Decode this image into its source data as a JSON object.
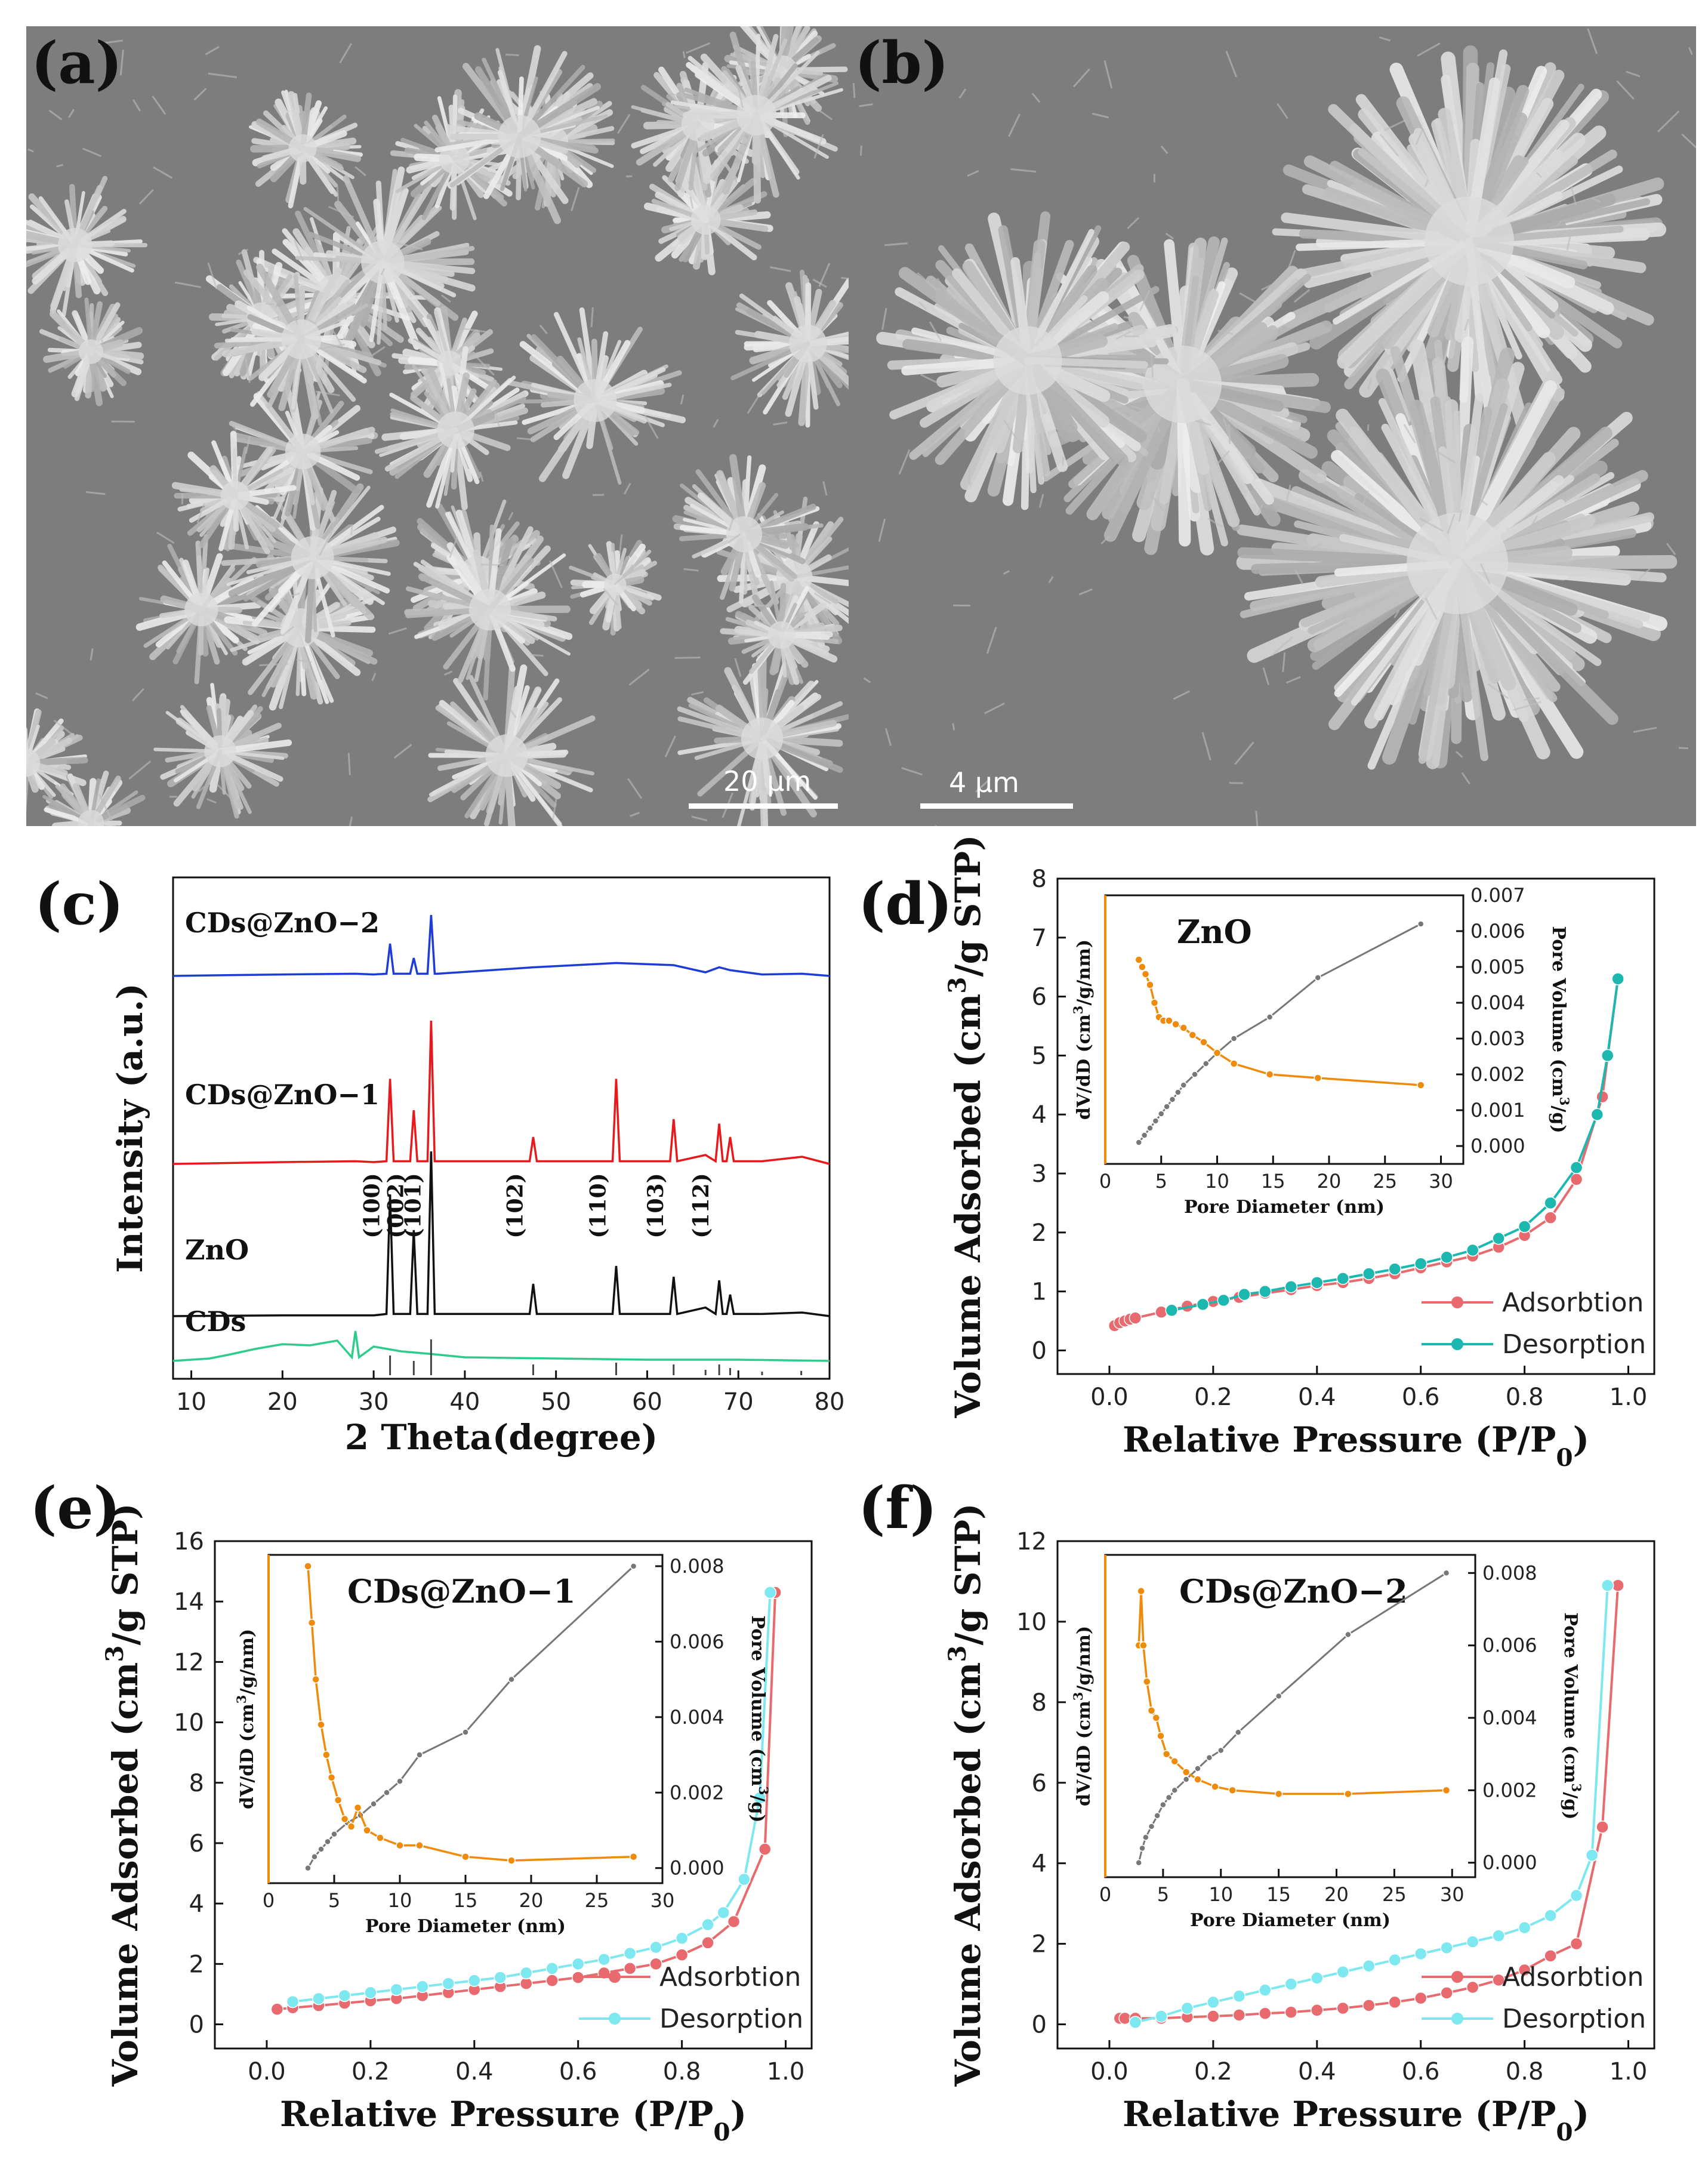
{
  "panels": {
    "a": {
      "label": "(a)",
      "scale_bar": "20 μm"
    },
    "b": {
      "label": "(b)",
      "scale_bar": "4 μm"
    },
    "c": {
      "label": "(c)"
    },
    "d": {
      "label": "(d)"
    },
    "e": {
      "label": "(e)"
    },
    "f": {
      "label": "(f)"
    }
  },
  "colors": {
    "xrd_cds": "#2ecc8a",
    "xrd_zno": "#111111",
    "xrd_cdszno1": "#e8191c",
    "xrd_cdszno2": "#1e3cd8",
    "adsorption": "#e86a6e",
    "desorption_d": "#1cb8b0",
    "desorption_ef": "#7ee8f0",
    "inset_dvdd": "#f08a0a",
    "inset_porevol": "#777777"
  },
  "chart_data": [
    {
      "id": "c",
      "type": "line",
      "xlabel": "2 Theta(degree)",
      "ylabel": "Intensity (a.u.)",
      "xlim": [
        8,
        80
      ],
      "xticks": [
        "10",
        "20",
        "30",
        "40",
        "50",
        "60",
        "70",
        "80"
      ],
      "series": [
        {
          "name": "CDs@ZnO−2",
          "x": [
            8,
            20,
            28,
            30,
            31.8,
            32.5,
            34.4,
            35,
            36.3,
            37,
            47.5,
            56.6,
            62.9,
            66.4,
            67.9,
            69.1,
            72.6,
            77,
            80
          ],
          "y": [
            0,
            0.02,
            0.03,
            0.02,
            0.45,
            0.03,
            0.25,
            0.03,
            0.85,
            0.03,
            0.12,
            0.18,
            0.15,
            0.05,
            0.12,
            0.08,
            0.02,
            0.03,
            0
          ]
        },
        {
          "name": "CDs@ZnO−1",
          "x": [
            8,
            20,
            28,
            30,
            31.8,
            32.5,
            34.4,
            35,
            36.3,
            37,
            47.5,
            56.6,
            62.9,
            66.4,
            67.9,
            69.1,
            72.6,
            77,
            80
          ],
          "y": [
            0,
            0.02,
            0.03,
            0.02,
            0.95,
            0.03,
            0.6,
            0.03,
            1.6,
            0.03,
            0.3,
            0.95,
            0.5,
            0.1,
            0.45,
            0.3,
            0.03,
            0.08,
            0
          ]
        },
        {
          "name": "ZnO",
          "x": [
            8,
            20,
            28,
            30,
            31.8,
            32.5,
            34.4,
            35,
            36.3,
            37,
            47.5,
            56.6,
            62.9,
            66.4,
            67.9,
            69.1,
            72.6,
            77,
            80
          ],
          "y": [
            0,
            0.01,
            0.01,
            0.01,
            1.7,
            0.03,
            1.2,
            0.03,
            2.3,
            0.03,
            0.45,
            0.7,
            0.55,
            0.12,
            0.5,
            0.3,
            0.03,
            0.05,
            0
          ]
        },
        {
          "name": "CDs",
          "x": [
            8,
            12,
            14,
            17,
            20,
            23,
            26,
            28,
            30,
            33,
            36,
            40,
            50,
            60,
            70,
            80
          ],
          "y": [
            0,
            0.02,
            0.05,
            0.1,
            0.14,
            0.13,
            0.17,
            0.25,
            0.12,
            0.08,
            0.06,
            0.03,
            0.02,
            0.01,
            0.01,
            0
          ]
        }
      ],
      "peak_labels": [
        {
          "label": "(100)",
          "x": 31.8
        },
        {
          "label": "(002)",
          "x": 34.4
        },
        {
          "label": "(101)",
          "x": 36.3
        },
        {
          "label": "(102)",
          "x": 47.5
        },
        {
          "label": "(110)",
          "x": 56.6
        },
        {
          "label": "(103)",
          "x": 62.9
        },
        {
          "label": "(112)",
          "x": 67.9
        }
      ],
      "reference_lines": {
        "x": [
          31.8,
          34.4,
          36.3,
          47.5,
          56.6,
          62.9,
          66.4,
          67.9,
          69.1,
          72.6,
          76.9
        ],
        "height": [
          0.55,
          0.4,
          1.0,
          0.3,
          0.35,
          0.3,
          0.15,
          0.3,
          0.2,
          0.1,
          0.12
        ]
      }
    },
    {
      "id": "d",
      "type": "line",
      "xlabel": "Relative Pressure (P/P",
      "xlabel_sub": "0",
      "xlabel_close": ")",
      "ylabel": "Volume Adsorbed (cm",
      "ylabel_sup": "3",
      "ylabel_rest": "/g STP)",
      "xlim": [
        -0.1,
        1.05
      ],
      "ylim": [
        -0.4,
        8
      ],
      "xticks": [
        "0.0",
        "0.2",
        "0.4",
        "0.6",
        "0.8",
        "1.0"
      ],
      "yticks": [
        "0",
        "1",
        "2",
        "3",
        "4",
        "5",
        "6",
        "7",
        "8"
      ],
      "legend": [
        "Adsorbtion",
        "Desorption"
      ],
      "series": [
        {
          "name": "Adsorbtion",
          "x": [
            0.01,
            0.02,
            0.03,
            0.04,
            0.05,
            0.1,
            0.15,
            0.2,
            0.25,
            0.3,
            0.35,
            0.4,
            0.45,
            0.5,
            0.55,
            0.6,
            0.65,
            0.7,
            0.75,
            0.8,
            0.85,
            0.9,
            0.95,
            0.98
          ],
          "y": [
            0.42,
            0.47,
            0.5,
            0.53,
            0.55,
            0.65,
            0.75,
            0.83,
            0.9,
            0.97,
            1.03,
            1.1,
            1.15,
            1.22,
            1.3,
            1.4,
            1.5,
            1.6,
            1.75,
            1.95,
            2.25,
            2.9,
            4.3,
            6.3
          ]
        },
        {
          "name": "Desorption",
          "x": [
            0.12,
            0.18,
            0.22,
            0.26,
            0.3,
            0.35,
            0.4,
            0.45,
            0.5,
            0.55,
            0.6,
            0.65,
            0.7,
            0.75,
            0.8,
            0.85,
            0.9,
            0.94,
            0.96,
            0.98
          ],
          "y": [
            0.68,
            0.78,
            0.85,
            0.95,
            1.0,
            1.08,
            1.15,
            1.22,
            1.3,
            1.38,
            1.47,
            1.58,
            1.7,
            1.9,
            2.1,
            2.5,
            3.1,
            4.0,
            5.0,
            6.3
          ]
        }
      ],
      "inset": {
        "title": "ZnO",
        "xlabel": "Pore Diameter (nm)",
        "ylabel_left": "dV/dD (cm",
        "ylabel_left_sup": "3",
        "ylabel_left_rest": "/g/nm)",
        "ylabel_right": "Pore Volume (cm",
        "ylabel_right_sup": "3",
        "ylabel_right_rest": "/g)",
        "xlim": [
          0,
          32
        ],
        "xticks": [
          "0",
          "5",
          "10",
          "15",
          "20",
          "25",
          "30"
        ],
        "yticks_right": [
          "0.000",
          "0.001",
          "0.002",
          "0.003",
          "0.004",
          "0.005",
          "0.006",
          "0.007"
        ],
        "right_lim": [
          -0.0005,
          0.007
        ],
        "dvdd": {
          "x": [
            3,
            3.3,
            3.6,
            4,
            4.4,
            4.8,
            5.2,
            5.7,
            6.3,
            7,
            7.8,
            8.8,
            10,
            11.5,
            14.7,
            19,
            28.2
          ],
          "y": [
            0.0052,
            0.005,
            0.0048,
            0.0045,
            0.004,
            0.0036,
            0.0035,
            0.0035,
            0.0034,
            0.0033,
            0.0031,
            0.0029,
            0.0026,
            0.0023,
            0.002,
            0.0019,
            0.0017
          ]
        },
        "porevol": {
          "x": [
            3,
            3.5,
            4,
            4.5,
            5,
            5.5,
            6,
            6.5,
            7,
            8,
            9,
            10,
            11.5,
            14.7,
            19,
            28.2
          ],
          "y": [
            0.0001,
            0.0003,
            0.0005,
            0.0007,
            0.0009,
            0.0011,
            0.0013,
            0.0015,
            0.0017,
            0.002,
            0.0023,
            0.0026,
            0.003,
            0.0036,
            0.0047,
            0.0062
          ]
        }
      }
    },
    {
      "id": "e",
      "type": "line",
      "xlabel": "Relative Pressure (P/P",
      "xlabel_sub": "0",
      "xlabel_close": ")",
      "ylabel": "Volume Adsorbed (cm",
      "ylabel_sup": "3",
      "ylabel_rest": "/g STP)",
      "xlim": [
        -0.1,
        1.05
      ],
      "ylim": [
        -0.8,
        16
      ],
      "xticks": [
        "0.0",
        "0.2",
        "0.4",
        "0.6",
        "0.8",
        "1.0"
      ],
      "yticks": [
        "0",
        "2",
        "4",
        "6",
        "8",
        "10",
        "12",
        "14",
        "16"
      ],
      "legend": [
        "Adsorbtion",
        "Desorption"
      ],
      "series": [
        {
          "name": "Adsorbtion",
          "x": [
            0.02,
            0.05,
            0.1,
            0.15,
            0.2,
            0.25,
            0.3,
            0.35,
            0.4,
            0.45,
            0.5,
            0.55,
            0.6,
            0.65,
            0.7,
            0.75,
            0.8,
            0.85,
            0.9,
            0.96,
            0.98
          ],
          "y": [
            0.5,
            0.55,
            0.62,
            0.7,
            0.78,
            0.85,
            0.95,
            1.05,
            1.15,
            1.25,
            1.35,
            1.45,
            1.55,
            1.7,
            1.85,
            2.0,
            2.3,
            2.7,
            3.4,
            5.8,
            14.3
          ]
        },
        {
          "name": "Desorption",
          "x": [
            0.05,
            0.1,
            0.15,
            0.2,
            0.25,
            0.3,
            0.35,
            0.4,
            0.45,
            0.5,
            0.55,
            0.6,
            0.65,
            0.7,
            0.75,
            0.8,
            0.85,
            0.88,
            0.92,
            0.95,
            0.97
          ],
          "y": [
            0.75,
            0.85,
            0.95,
            1.05,
            1.15,
            1.25,
            1.35,
            1.45,
            1.55,
            1.7,
            1.85,
            2.0,
            2.15,
            2.35,
            2.55,
            2.85,
            3.3,
            3.7,
            4.8,
            7.5,
            14.3
          ]
        }
      ],
      "inset": {
        "title": "CDs@ZnO−1",
        "xlabel": "Pore Diameter (nm)",
        "ylabel_left": "dV/dD (cm",
        "ylabel_left_sup": "3",
        "ylabel_left_rest": "/g/nm)",
        "ylabel_right": "Pore Volume (cm",
        "ylabel_right_sup": "3",
        "ylabel_right_rest": "/g)",
        "xlim": [
          0,
          30
        ],
        "xticks": [
          "0",
          "5",
          "10",
          "15",
          "20",
          "25",
          "30"
        ],
        "yticks_right": [
          "0.000",
          "0.002",
          "0.004",
          "0.006",
          "0.008"
        ],
        "right_lim": [
          -0.0004,
          0.0083
        ],
        "dvdd": {
          "x": [
            3,
            3.3,
            3.6,
            4,
            4.4,
            4.8,
            5.3,
            5.8,
            6.3,
            6.8,
            7.5,
            8.5,
            10,
            11.5,
            15,
            18.5,
            27.8
          ],
          "y": [
            0.008,
            0.0065,
            0.005,
            0.0038,
            0.003,
            0.0024,
            0.0018,
            0.0013,
            0.0011,
            0.0016,
            0.001,
            0.0008,
            0.0006,
            0.0006,
            0.0003,
            0.0002,
            0.0003
          ]
        },
        "porevol": {
          "x": [
            3,
            3.5,
            4,
            4.5,
            5,
            6,
            7,
            8,
            9,
            10,
            11.5,
            15,
            18.5,
            27.8
          ],
          "y": [
            0.0,
            0.0003,
            0.0005,
            0.0007,
            0.0009,
            0.0012,
            0.0014,
            0.0017,
            0.002,
            0.0023,
            0.003,
            0.0036,
            0.005,
            0.008
          ]
        }
      }
    },
    {
      "id": "f",
      "type": "line",
      "xlabel": "Relative Pressure (P/P",
      "xlabel_sub": "0",
      "xlabel_close": ")",
      "ylabel": "Volume Adsorbed (cm",
      "ylabel_sup": "3",
      "ylabel_rest": "/g STP)",
      "xlim": [
        -0.1,
        1.05
      ],
      "ylim": [
        -0.6,
        12
      ],
      "xticks": [
        "0.0",
        "0.2",
        "0.4",
        "0.6",
        "0.8",
        "1.0"
      ],
      "yticks": [
        "0",
        "2",
        "4",
        "6",
        "8",
        "10",
        "12"
      ],
      "legend": [
        "Adsorbtion",
        "Desorption"
      ],
      "series": [
        {
          "name": "Adsorbtion",
          "x": [
            0.02,
            0.03,
            0.05,
            0.1,
            0.15,
            0.2,
            0.25,
            0.3,
            0.35,
            0.4,
            0.45,
            0.5,
            0.55,
            0.6,
            0.65,
            0.7,
            0.75,
            0.8,
            0.85,
            0.9,
            0.95,
            0.98
          ],
          "y": [
            0.15,
            0.15,
            0.15,
            0.15,
            0.18,
            0.2,
            0.23,
            0.27,
            0.3,
            0.35,
            0.4,
            0.47,
            0.55,
            0.65,
            0.78,
            0.92,
            1.1,
            1.35,
            1.7,
            2.0,
            4.9,
            10.9
          ]
        },
        {
          "name": "Desorption",
          "x": [
            0.05,
            0.1,
            0.15,
            0.2,
            0.25,
            0.3,
            0.35,
            0.4,
            0.45,
            0.5,
            0.55,
            0.6,
            0.65,
            0.7,
            0.75,
            0.8,
            0.85,
            0.9,
            0.93,
            0.96
          ],
          "y": [
            0.05,
            0.2,
            0.4,
            0.55,
            0.7,
            0.85,
            1.0,
            1.15,
            1.3,
            1.45,
            1.6,
            1.75,
            1.9,
            2.05,
            2.2,
            2.4,
            2.7,
            3.2,
            4.2,
            10.9
          ]
        }
      ],
      "inset": {
        "title": "CDs@ZnO−2",
        "xlabel": "Pore Diameter (nm)",
        "ylabel_left": "dV/dD (cm",
        "ylabel_left_sup": "3",
        "ylabel_left_rest": "/g/nm)",
        "ylabel_right": "Pore Volume  (cm",
        "ylabel_right_sup": "3",
        "ylabel_right_rest": "/g)",
        "xlim": [
          0,
          32
        ],
        "xticks": [
          "0",
          "5",
          "10",
          "15",
          "20",
          "25",
          "30"
        ],
        "yticks_right": [
          "0.000",
          "0.002",
          "0.004",
          "0.006",
          "0.008"
        ],
        "right_lim": [
          -0.0004,
          0.0085
        ],
        "dvdd": {
          "x": [
            2.9,
            3.1,
            3.3,
            3.6,
            4,
            4.4,
            4.8,
            5.3,
            6,
            7,
            8,
            9.5,
            11,
            15,
            21,
            29.5
          ],
          "y": [
            0.006,
            0.0075,
            0.006,
            0.005,
            0.0042,
            0.004,
            0.0035,
            0.003,
            0.0028,
            0.0025,
            0.0023,
            0.0021,
            0.002,
            0.0019,
            0.0019,
            0.002
          ]
        },
        "porevol": {
          "x": [
            2.9,
            3.2,
            3.5,
            4,
            4.5,
            5,
            5.5,
            6,
            7,
            8,
            9,
            10,
            11.5,
            15,
            21,
            29.5
          ],
          "y": [
            0.0,
            0.0004,
            0.0007,
            0.001,
            0.0013,
            0.0016,
            0.0018,
            0.002,
            0.0023,
            0.0026,
            0.0029,
            0.0031,
            0.0036,
            0.0046,
            0.0063,
            0.008
          ]
        }
      }
    }
  ]
}
